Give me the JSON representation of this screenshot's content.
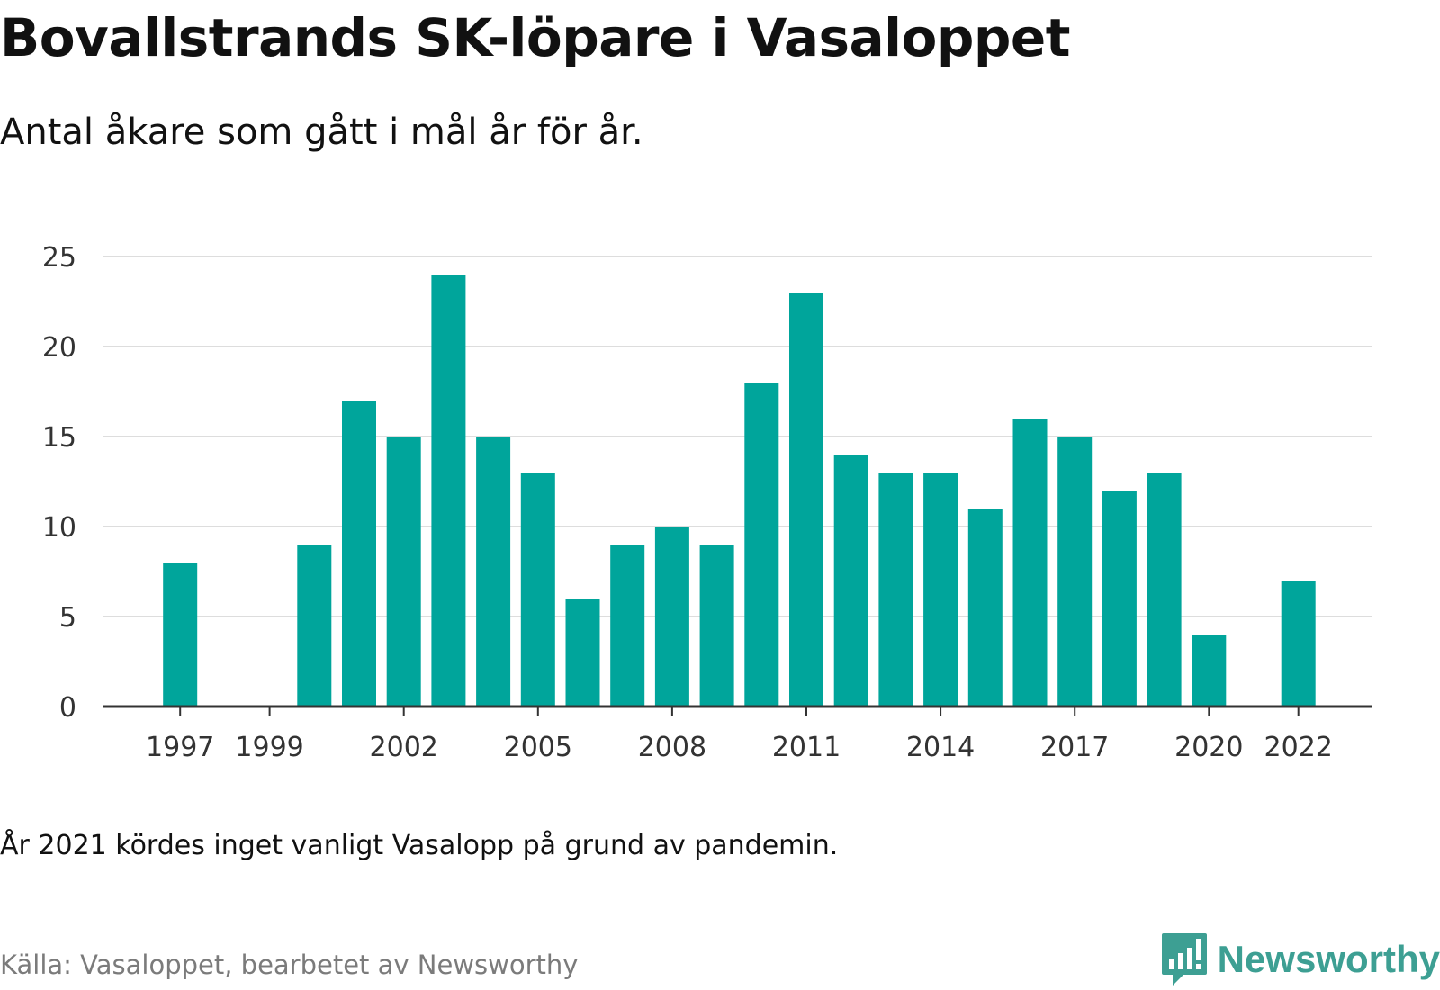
{
  "header": {
    "title": "Bovallstrands SK-löpare i Vasaloppet",
    "subtitle": "Antal åkare som gått i mål år för år."
  },
  "footer": {
    "note": "År 2021 kördes inget vanligt Vasalopp på grund av pandemin.",
    "source": "Källa: Vasaloppet, bearbetet av Newsworthy",
    "brand": "Newsworthy"
  },
  "colors": {
    "bar": "#00a59b",
    "gridline": "#dddddd",
    "axis": "#333333",
    "brand": "#3d9f93"
  },
  "icons": {
    "brand": "newsworthy-logo-icon"
  },
  "chart_data": {
    "type": "bar",
    "categories": [
      "1996",
      "1997",
      "1998",
      "1999",
      "2000",
      "2001",
      "2002",
      "2003",
      "2004",
      "2005",
      "2006",
      "2007",
      "2008",
      "2009",
      "2010",
      "2011",
      "2012",
      "2013",
      "2014",
      "2015",
      "2016",
      "2017",
      "2018",
      "2019",
      "2020",
      "2021",
      "2022",
      "2023"
    ],
    "values": [
      0,
      8,
      0,
      0,
      9,
      17,
      15,
      24,
      15,
      13,
      6,
      9,
      10,
      9,
      18,
      23,
      14,
      13,
      13,
      11,
      16,
      15,
      12,
      13,
      4,
      0,
      7,
      0
    ],
    "x_tick_labels": [
      "1997",
      "1999",
      "2002",
      "2005",
      "2008",
      "2011",
      "2014",
      "2017",
      "2020",
      "2022"
    ],
    "y_ticks": [
      0,
      5,
      10,
      15,
      20,
      25
    ],
    "ylim": [
      0,
      25
    ],
    "xlabel": "",
    "ylabel": "",
    "grid": true,
    "legend": "none"
  }
}
